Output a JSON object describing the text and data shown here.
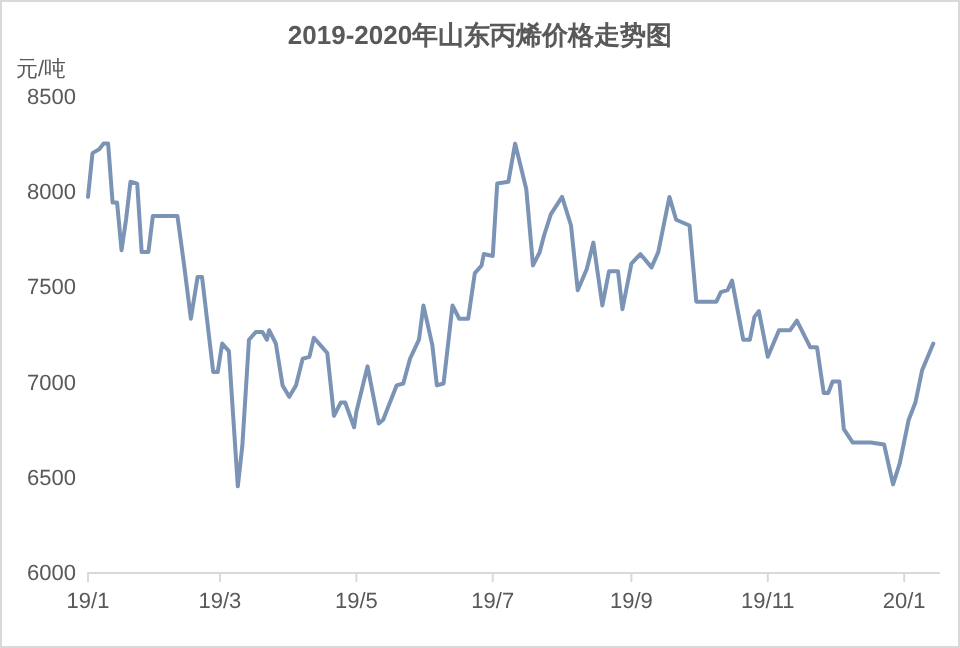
{
  "chart_data": {
    "type": "line",
    "title": "2019-2020年山东丙烯价格走势图",
    "ylabel": "元/吨",
    "x": [
      "2019-01-01",
      "2019-01-03",
      "2019-01-06",
      "2019-01-08",
      "2019-01-10",
      "2019-01-12",
      "2019-01-14",
      "2019-01-16",
      "2019-01-18",
      "2019-01-20",
      "2019-01-23",
      "2019-01-25",
      "2019-01-28",
      "2019-01-30",
      "2019-02-10",
      "2019-02-13",
      "2019-02-16",
      "2019-02-19",
      "2019-02-21",
      "2019-02-26",
      "2019-02-28",
      "2019-03-02",
      "2019-03-05",
      "2019-03-09",
      "2019-03-11",
      "2019-03-14",
      "2019-03-17",
      "2019-03-20",
      "2019-03-22",
      "2019-03-23",
      "2019-03-26",
      "2019-03-29",
      "2019-04-01",
      "2019-04-04",
      "2019-04-07",
      "2019-04-10",
      "2019-04-12",
      "2019-04-15",
      "2019-04-18",
      "2019-04-21",
      "2019-04-24",
      "2019-04-26",
      "2019-04-30",
      "2019-05-01",
      "2019-05-06",
      "2019-05-11",
      "2019-05-13",
      "2019-05-19",
      "2019-05-22",
      "2019-05-25",
      "2019-05-29",
      "2019-05-31",
      "2019-06-04",
      "2019-06-06",
      "2019-06-09",
      "2019-06-13",
      "2019-06-16",
      "2019-06-20",
      "2019-06-23",
      "2019-06-26",
      "2019-06-27",
      "2019-07-01",
      "2019-07-03",
      "2019-07-08",
      "2019-07-11",
      "2019-07-16",
      "2019-07-19",
      "2019-07-22",
      "2019-07-24",
      "2019-07-27",
      "2019-08-01",
      "2019-08-05",
      "2019-08-08",
      "2019-08-12",
      "2019-08-15",
      "2019-08-19",
      "2019-08-22",
      "2019-08-26",
      "2019-08-28",
      "2019-09-01",
      "2019-09-05",
      "2019-09-10",
      "2019-09-13",
      "2019-09-18",
      "2019-09-21",
      "2019-09-27",
      "2019-09-30",
      "2019-10-09",
      "2019-10-11",
      "2019-10-14",
      "2019-10-16",
      "2019-10-21",
      "2019-10-24",
      "2019-10-26",
      "2019-10-28",
      "2019-11-01",
      "2019-11-06",
      "2019-11-11",
      "2019-11-14",
      "2019-11-20",
      "2019-11-23",
      "2019-11-26",
      "2019-11-28",
      "2019-11-30",
      "2019-12-03",
      "2019-12-05",
      "2019-12-09",
      "2019-12-17",
      "2019-12-23",
      "2019-12-27",
      "2019-12-30",
      "2020-01-03",
      "2020-01-06",
      "2020-01-09",
      "2020-01-14"
    ],
    "series": [
      {
        "color": "#7b93b5",
        "values": [
          7970,
          8200,
          8220,
          8250,
          8250,
          7940,
          7940,
          7690,
          7850,
          8050,
          8040,
          7680,
          7680,
          7870,
          7870,
          7610,
          7330,
          7550,
          7550,
          7050,
          7050,
          7200,
          7160,
          6450,
          6660,
          7220,
          7260,
          7260,
          7220,
          7270,
          7200,
          6980,
          6920,
          6980,
          7120,
          7130,
          7230,
          7190,
          7150,
          6820,
          6890,
          6890,
          6760,
          6840,
          7080,
          6780,
          6800,
          6980,
          6990,
          7120,
          7220,
          7400,
          7190,
          6980,
          6990,
          7400,
          7330,
          7330,
          7570,
          7610,
          7670,
          7660,
          8040,
          8050,
          8250,
          8010,
          7610,
          7680,
          7770,
          7880,
          7970,
          7820,
          7480,
          7590,
          7730,
          7400,
          7580,
          7580,
          7380,
          7620,
          7670,
          7600,
          7680,
          7970,
          7850,
          7820,
          7420,
          7420,
          7470,
          7480,
          7530,
          7220,
          7220,
          7340,
          7370,
          7130,
          7270,
          7270,
          7320,
          7180,
          7180,
          6940,
          6940,
          7000,
          7000,
          6750,
          6680,
          6680,
          6670,
          6460,
          6570,
          6800,
          6890,
          7060,
          7200
        ]
      }
    ],
    "xlim": [
      "2019-01-01",
      "2020-01-17"
    ],
    "xticks": [
      {
        "value": "2019-01-01",
        "label": "19/1"
      },
      {
        "value": "2019-03-01",
        "label": "19/3"
      },
      {
        "value": "2019-05-01",
        "label": "19/5"
      },
      {
        "value": "2019-07-01",
        "label": "19/7"
      },
      {
        "value": "2019-09-01",
        "label": "19/9"
      },
      {
        "value": "2019-11-01",
        "label": "19/11"
      },
      {
        "value": "2020-01-01",
        "label": "20/1"
      }
    ],
    "ylim": [
      6000,
      8500
    ],
    "yticks": [
      6000,
      6500,
      7000,
      7500,
      8000,
      8500
    ],
    "grid": false,
    "marker": "none",
    "line_style": "solid"
  }
}
